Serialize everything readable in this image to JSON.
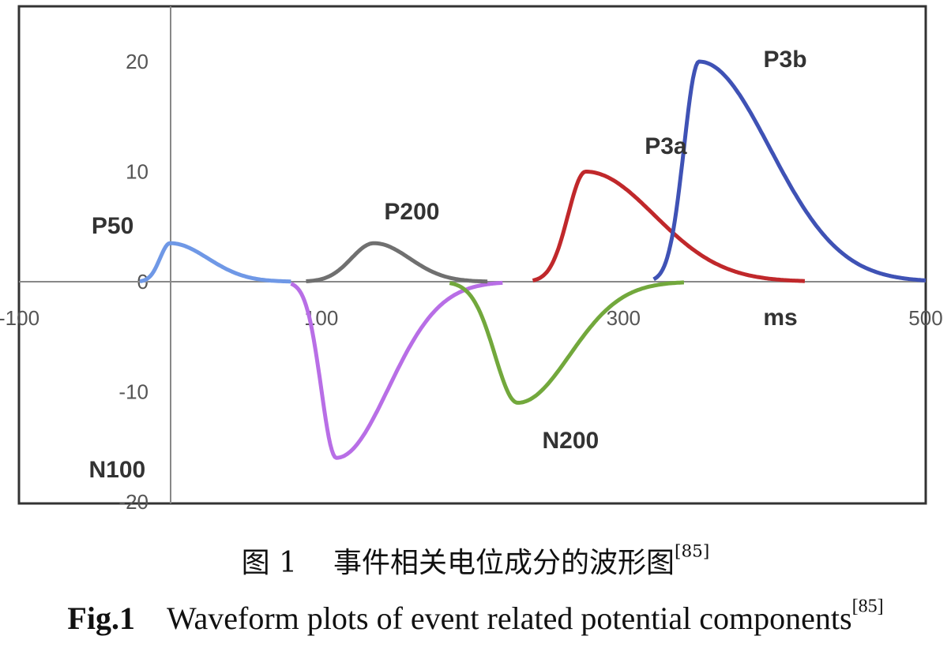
{
  "chart_data": {
    "type": "line",
    "xlabel": "ms",
    "xlim": [
      -100,
      500
    ],
    "ylim": [
      -20,
      25
    ],
    "x_ticks": [
      "-100",
      "100",
      "300",
      "500"
    ],
    "y_ticks": [
      "20",
      "10",
      "0",
      "-10",
      "-20"
    ],
    "grid": false,
    "series": [
      {
        "name": "P50",
        "color": "#6f98e6",
        "peak_x": 0,
        "peak_y": 3.5,
        "start_x": -20,
        "end_x": 80
      },
      {
        "name": "N100",
        "color": "#b86ee6",
        "peak_x": 110,
        "peak_y": -16,
        "start_x": 80,
        "end_x": 220
      },
      {
        "name": "P200",
        "color": "#707070",
        "peak_x": 135,
        "peak_y": 3.5,
        "start_x": 90,
        "end_x": 210
      },
      {
        "name": "N200",
        "color": "#72a83c",
        "peak_x": 230,
        "peak_y": -11,
        "start_x": 185,
        "end_x": 340
      },
      {
        "name": "P3a",
        "color": "#c0282b",
        "peak_x": 275,
        "peak_y": 10,
        "start_x": 240,
        "end_x": 420
      },
      {
        "name": "P3b",
        "color": "#3f52b5",
        "peak_x": 350,
        "peak_y": 20,
        "start_x": 320,
        "end_x": 500
      }
    ]
  },
  "caption": {
    "cn_label": "图 1",
    "cn_text": "事件相关电位成分的波形图",
    "en_label": "Fig.1",
    "en_text": "Waveform plots of event related potential components",
    "ref": "[85]"
  }
}
